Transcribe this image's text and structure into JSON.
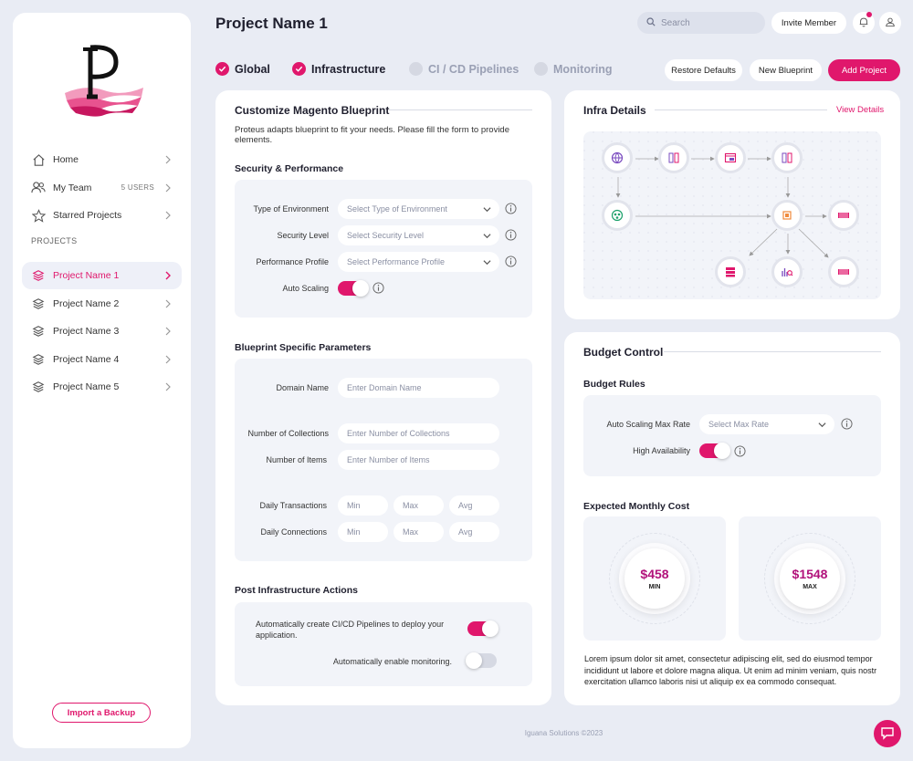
{
  "header": {
    "title": "Project Name 1",
    "search_placeholder": "Search",
    "invite_label": "Invite Member"
  },
  "sidebar": {
    "nav": [
      {
        "label": "Home",
        "icon": "home-icon"
      },
      {
        "label": "My Team",
        "badge": "5 USERS",
        "icon": "team-icon"
      },
      {
        "label": "Starred Projects",
        "icon": "star-icon"
      }
    ],
    "projects_label": "PROJECTS",
    "projects": [
      {
        "label": "Project Name 1",
        "active": true
      },
      {
        "label": "Project Name 2"
      },
      {
        "label": "Project Name 3"
      },
      {
        "label": "Project Name 4"
      },
      {
        "label": "Project Name 5"
      }
    ],
    "import_label": "Import a Backup"
  },
  "steps": [
    {
      "label": "Global",
      "done": true
    },
    {
      "label": "Infrastructure",
      "done": true
    },
    {
      "label": "CI / CD Pipelines",
      "done": false
    },
    {
      "label": "Monitoring",
      "done": false
    }
  ],
  "actions": {
    "restore": "Restore Defaults",
    "new_blueprint": "New Blueprint",
    "add_project": "Add Project"
  },
  "blueprint": {
    "title": "Customize Magento Blueprint",
    "subtitle": "Proteus adapts blueprint to fit your needs. Please fill the form to provide elements.",
    "security": {
      "title": "Security & Performance",
      "env_label": "Type of Environment",
      "env_placeholder": "Select Type of Environment",
      "sec_label": "Security Level",
      "sec_placeholder": "Select Security Level",
      "perf_label": "Performance Profile",
      "perf_placeholder": "Select Performance Profile",
      "autoscale_label": "Auto Scaling",
      "autoscale_on": true
    },
    "params": {
      "title": "Blueprint Specific Parameters",
      "domain_label": "Domain Name",
      "domain_placeholder": "Enter Domain Name",
      "collections_label": "Number of Collections",
      "collections_placeholder": "Enter Number of Collections",
      "items_label": "Number of Items",
      "items_placeholder": "Enter Number of Items",
      "transactions_label": "Daily Transactions",
      "connections_label": "Daily Connections",
      "min": "Min",
      "max": "Max",
      "avg": "Avg"
    },
    "post": {
      "title": "Post Infrastructure Actions",
      "cicd_label": "Automatically create CI/CD Pipelines to deploy your application.",
      "cicd_on": true,
      "monitor_label": "Automatically enable monitoring.",
      "monitor_on": false
    }
  },
  "infra": {
    "title": "Infra Details",
    "view_details": "View Details"
  },
  "budget": {
    "title": "Budget Control",
    "rules_title": "Budget Rules",
    "max_rate_label": "Auto Scaling Max Rate",
    "max_rate_placeholder": "Select Max Rate",
    "ha_label": "High Availability",
    "ha_on": true,
    "cost_title": "Expected Monthly Cost",
    "min_value": "$458",
    "min_caption": "MIN",
    "max_value": "$1548",
    "max_caption": "MAX",
    "description": "Lorem ipsum dolor sit amet, consectetur adipiscing elit, sed do eiusmod tempor incididunt ut labore et dolore magna aliqua. Ut enim ad minim veniam, quis nostr exercitation ullamco laboris nisi ut aliquip ex ea commodo consequat."
  },
  "footer": {
    "copyright": "Iguana Solutions ©2023"
  },
  "colors": {
    "accent": "#e0176c",
    "background": "#e9ecf4",
    "panel": "#f2f4f9"
  }
}
